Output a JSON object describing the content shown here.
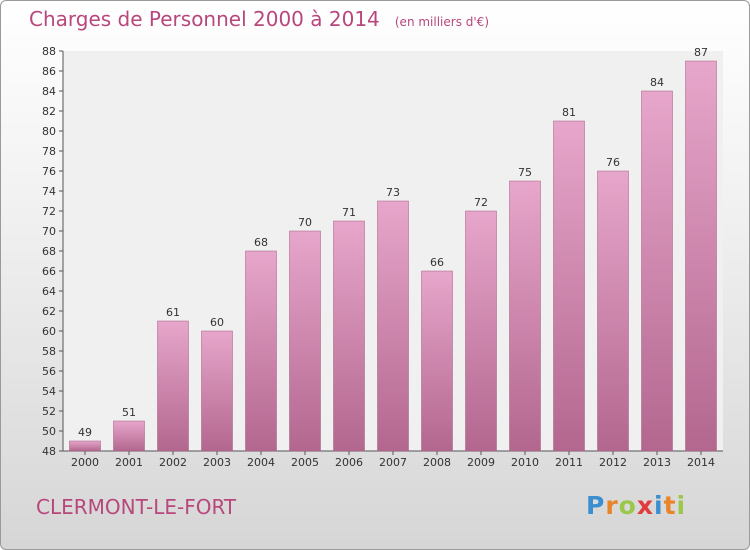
{
  "header": {
    "title": "Charges de Personnel 2000 à 2014",
    "subtitle": "(en milliers d'€)"
  },
  "footer": {
    "commune": "CLERMONT-LE-FORT",
    "brand_letters": [
      "P",
      "r",
      "o",
      "x",
      "i",
      "t",
      "i"
    ],
    "brand_colors": [
      "#3b8fd0",
      "#e8842a",
      "#9bc84a",
      "#e23b3b",
      "#3b8fd0",
      "#e8842a",
      "#9bc84a"
    ]
  },
  "colors": {
    "bar_light": "#e7a6cb",
    "bar_dark": "#b3678f",
    "plot_background": "#f0f0f0",
    "title": "#b8477c"
  },
  "chart_data": {
    "type": "bar",
    "categories": [
      "2000",
      "2001",
      "2002",
      "2003",
      "2004",
      "2005",
      "2006",
      "2007",
      "2008",
      "2009",
      "2010",
      "2011",
      "2012",
      "2013",
      "2014"
    ],
    "values": [
      49,
      51,
      61,
      60,
      68,
      70,
      71,
      73,
      66,
      72,
      75,
      81,
      76,
      84,
      87
    ],
    "ylim": [
      48,
      88
    ],
    "yticks": [
      48,
      50,
      52,
      54,
      56,
      58,
      60,
      62,
      64,
      66,
      68,
      70,
      72,
      74,
      76,
      78,
      80,
      82,
      84,
      86,
      88
    ],
    "grid": false,
    "data_labels": true
  }
}
